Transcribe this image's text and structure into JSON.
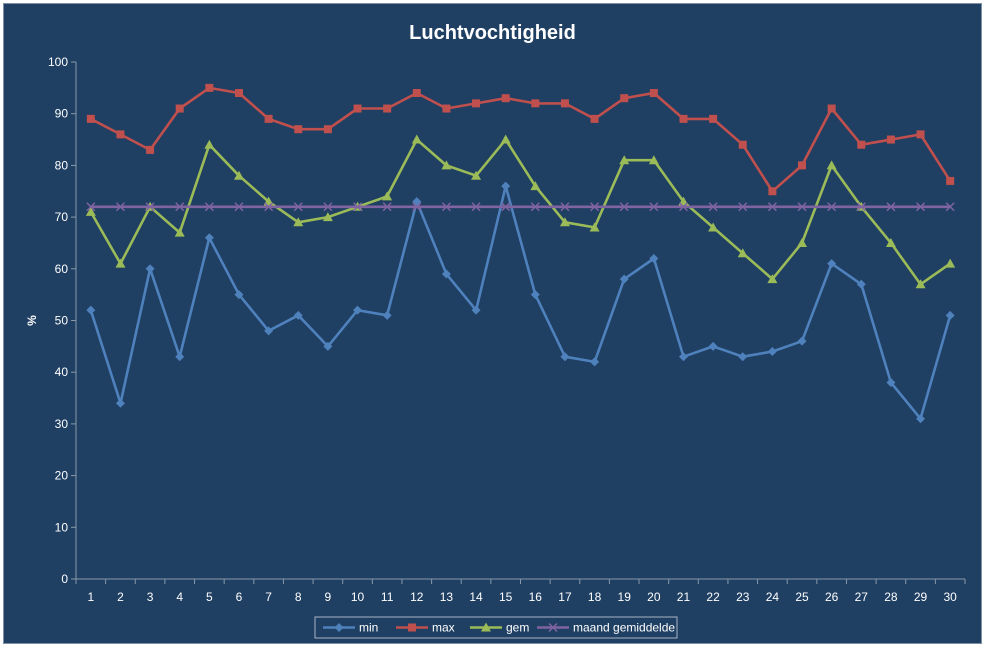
{
  "chart_data": {
    "type": "line",
    "title": "Luchtvochtigheid",
    "xlabel": "",
    "ylabel": "%",
    "ylim": [
      0,
      100
    ],
    "yticks": [
      0,
      10,
      20,
      30,
      40,
      50,
      60,
      70,
      80,
      90,
      100
    ],
    "x": [
      1,
      2,
      3,
      4,
      5,
      6,
      7,
      8,
      9,
      10,
      11,
      12,
      13,
      14,
      15,
      16,
      17,
      18,
      19,
      20,
      21,
      22,
      23,
      24,
      25,
      26,
      27,
      28,
      29,
      30
    ],
    "grid": false,
    "legend": "bottom",
    "series": [
      {
        "name": "min",
        "color": "#4f81bd",
        "marker": "diamond",
        "values": [
          52,
          34,
          60,
          43,
          66,
          55,
          48,
          51,
          45,
          52,
          51,
          73,
          59,
          52,
          76,
          55,
          43,
          42,
          58,
          62,
          43,
          45,
          43,
          44,
          46,
          61,
          57,
          38,
          31,
          51
        ]
      },
      {
        "name": "max",
        "color": "#c0504d",
        "marker": "square",
        "values": [
          89,
          86,
          83,
          91,
          95,
          94,
          89,
          87,
          87,
          91,
          91,
          94,
          91,
          92,
          93,
          92,
          92,
          89,
          93,
          94,
          89,
          89,
          84,
          75,
          80,
          91,
          84,
          85,
          86,
          77
        ]
      },
      {
        "name": "gem",
        "color": "#9bbb59",
        "marker": "triangle",
        "values": [
          71,
          61,
          72,
          67,
          84,
          78,
          73,
          69,
          70,
          72,
          74,
          85,
          80,
          78,
          85,
          76,
          69,
          68,
          81,
          81,
          73,
          68,
          63,
          58,
          65,
          80,
          72,
          65,
          57,
          61
        ]
      },
      {
        "name": "maand gemiddelde",
        "color": "#8064a2",
        "marker": "x",
        "values": [
          72,
          72,
          72,
          72,
          72,
          72,
          72,
          72,
          72,
          72,
          72,
          72,
          72,
          72,
          72,
          72,
          72,
          72,
          72,
          72,
          72,
          72,
          72,
          72,
          72,
          72,
          72,
          72,
          72,
          72
        ]
      }
    ]
  }
}
